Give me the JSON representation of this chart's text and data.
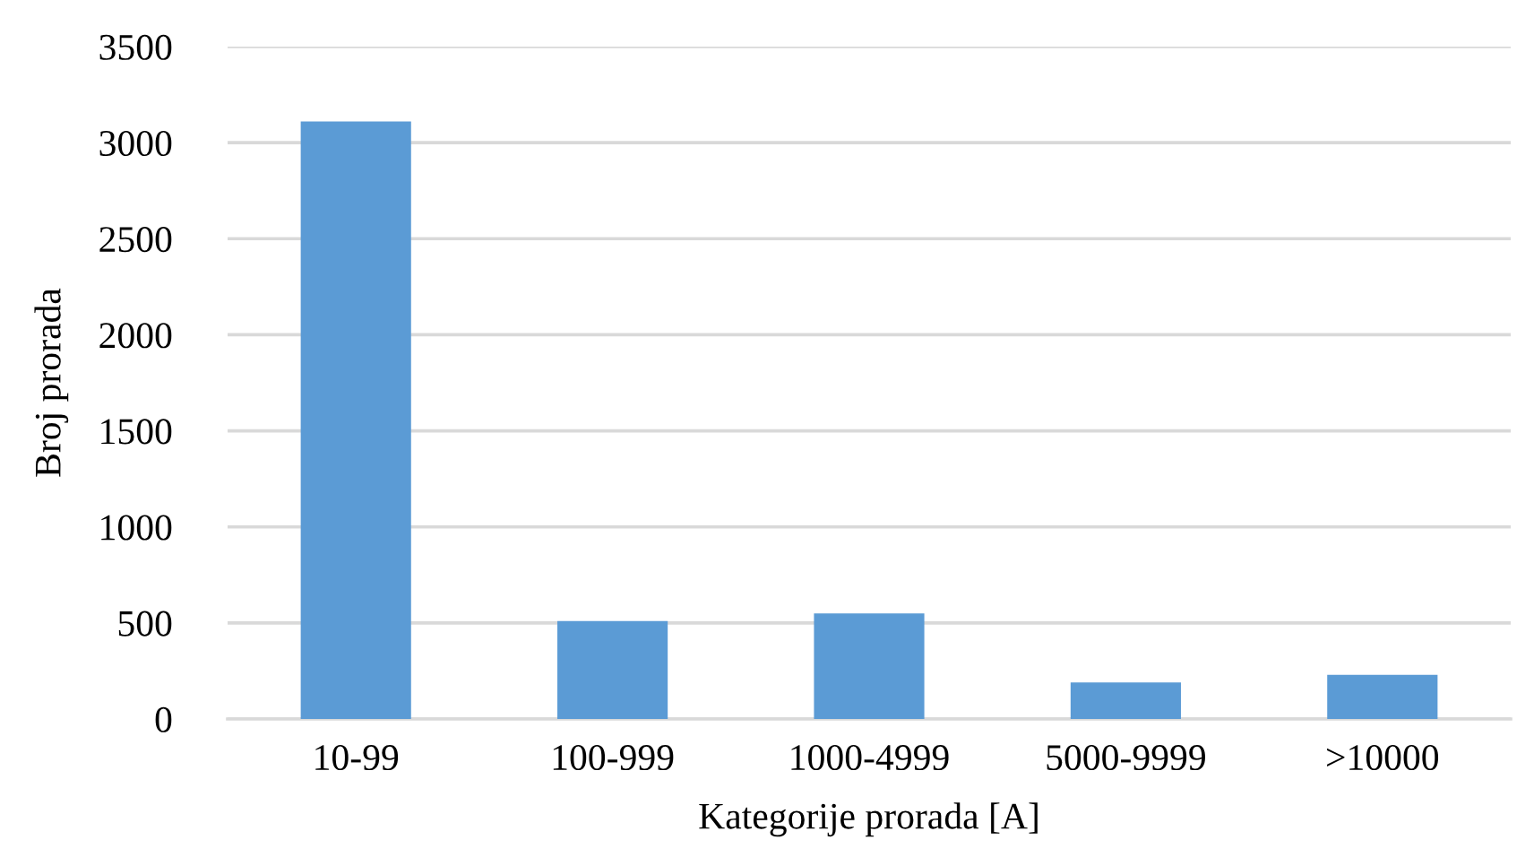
{
  "chart_data": {
    "type": "bar",
    "xlabel": "Kategorije prorada [A]",
    "ylabel": "Broj prorada",
    "categories": [
      "10-99",
      "100-999",
      "1000-4999",
      "5000-9999",
      ">10000"
    ],
    "values": [
      3110,
      510,
      550,
      190,
      230
    ],
    "color": "#5b9bd5",
    "ylim": [
      0,
      3500
    ],
    "yticks": [
      0,
      500,
      1000,
      1500,
      2000,
      2500,
      3000,
      3500
    ],
    "grid": "y",
    "legend": false
  }
}
